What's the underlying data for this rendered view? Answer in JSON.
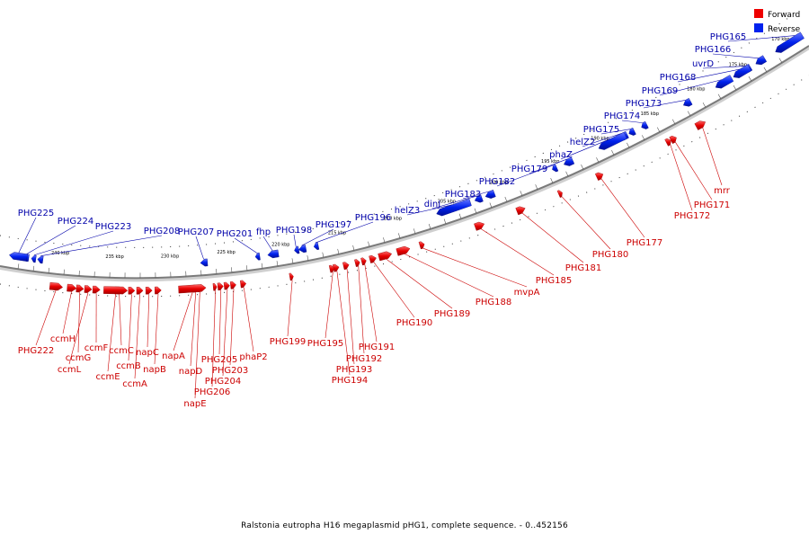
{
  "title": "Ralstonia eutropha H16 megaplasmid pHG1, complete sequence. - 0..452156",
  "legend": {
    "forward": "Forward",
    "reverse": "Reverse",
    "forward_color": "#ee0000",
    "reverse_color": "#0022ee"
  },
  "backbone_color": "#808080",
  "scale": {
    "unit": "kbp",
    "ticks": [
      "170 kbp",
      "175 kbp",
      "180 kbp",
      "185 kbp",
      "190 kbp",
      "195 kbp",
      "200 kbp",
      "205 kbp",
      "210 kbp",
      "215 kbp",
      "220 kbp",
      "225 kbp",
      "230 kbp",
      "235 kbp",
      "240 kbp"
    ]
  },
  "reverse_genes": [
    "PHG165",
    "PHG166",
    "uvrD",
    "PHG168",
    "PHG169",
    "PHG173",
    "PHG174",
    "PHG175",
    "helZ2",
    "phaZ",
    "PHG179",
    "PHG182",
    "PHG183",
    "dinJ",
    "helZ3",
    "PHG196",
    "PHG197",
    "PHG198",
    "fhp",
    "PHG201",
    "PHG207",
    "PHG208",
    "PHG223",
    "PHG224",
    "PHG225"
  ],
  "forward_genes": [
    "mrr",
    "PHG171",
    "PHG172",
    "PHG177",
    "PHG180",
    "PHG181",
    "PHG185",
    "mvpA",
    "PHG188",
    "PHG189",
    "PHG190",
    "PHG191",
    "PHG192",
    "PHG193",
    "PHG194",
    "PHG195",
    "PHG199",
    "phaP2",
    "PHG203",
    "PHG204",
    "PHG205",
    "PHG206",
    "napE",
    "napD",
    "napA",
    "napB",
    "napC",
    "ccmA",
    "ccmB",
    "ccmC",
    "ccmE",
    "ccmF",
    "ccmL",
    "ccmG",
    "ccmH",
    "PHG222"
  ]
}
